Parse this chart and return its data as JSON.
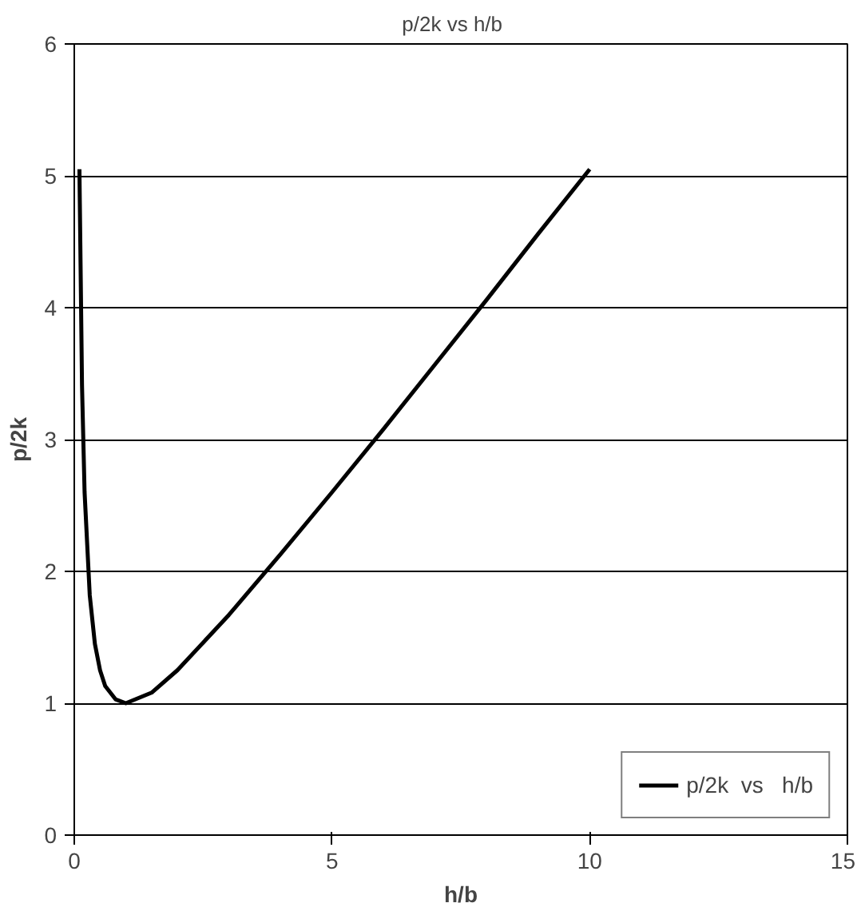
{
  "chart_data": {
    "type": "line",
    "title": "p/2k  vs   h/b",
    "xlabel": "h/b",
    "ylabel": "p/2k",
    "xlim": [
      0,
      15
    ],
    "xticks": [
      0,
      5,
      10,
      15
    ],
    "ylim": [
      0,
      6
    ],
    "yticks": [
      0,
      1,
      2,
      3,
      4,
      5,
      6
    ],
    "grid": "y",
    "legend": "bottom right",
    "marker": "none",
    "line_style": "solid",
    "series": [
      {
        "name": "p/2k  vs   h/b",
        "color": "#000000",
        "x": [
          0.1,
          0.15,
          0.2,
          0.3,
          0.4,
          0.5,
          0.6,
          0.8,
          1,
          1.5,
          2,
          3,
          4,
          5,
          6,
          7,
          8,
          9,
          10
        ],
        "values": [
          5.05,
          3.41,
          2.6,
          1.82,
          1.45,
          1.25,
          1.13,
          1.03,
          1,
          1.08,
          1.25,
          1.67,
          2.13,
          2.6,
          3.08,
          3.57,
          4.06,
          4.56,
          5.05
        ]
      }
    ]
  }
}
